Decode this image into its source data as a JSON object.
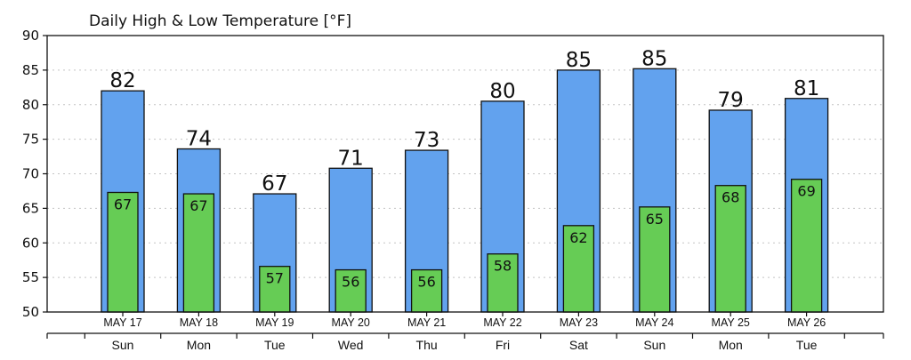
{
  "chart_data": {
    "type": "bar",
    "title": "Daily High & Low Temperature [°F]",
    "ylim": [
      50,
      90
    ],
    "yticks": [
      50,
      55,
      60,
      65,
      70,
      75,
      80,
      85,
      90
    ],
    "grid": "dotted horizontal",
    "categories": [
      "MAY 17",
      "MAY 18",
      "MAY 19",
      "MAY 20",
      "MAY 21",
      "MAY 22",
      "MAY 23",
      "MAY 24",
      "MAY 25",
      "MAY 26"
    ],
    "weekdays": [
      "Sun",
      "Mon",
      "Tue",
      "Wed",
      "Thu",
      "Fri",
      "Sat",
      "Sun",
      "Mon",
      "Tue"
    ],
    "series": [
      {
        "values": [
          82,
          73.6,
          67.1,
          70.8,
          73.4,
          80.5,
          85,
          85.2,
          79.2,
          80.9
        ],
        "labels": [
          "82",
          "74",
          "67",
          "71",
          "73",
          "80",
          "85",
          "85",
          "79",
          "81"
        ],
        "color": "#62a2ee"
      },
      {
        "values": [
          67.3,
          67.1,
          56.6,
          56.1,
          56.1,
          58.4,
          62.5,
          65.2,
          68.3,
          69.2
        ],
        "labels": [
          "67",
          "67",
          "57",
          "56",
          "56",
          "58",
          "62",
          "65",
          "68",
          "69"
        ],
        "color": "#66cc55"
      }
    ]
  }
}
